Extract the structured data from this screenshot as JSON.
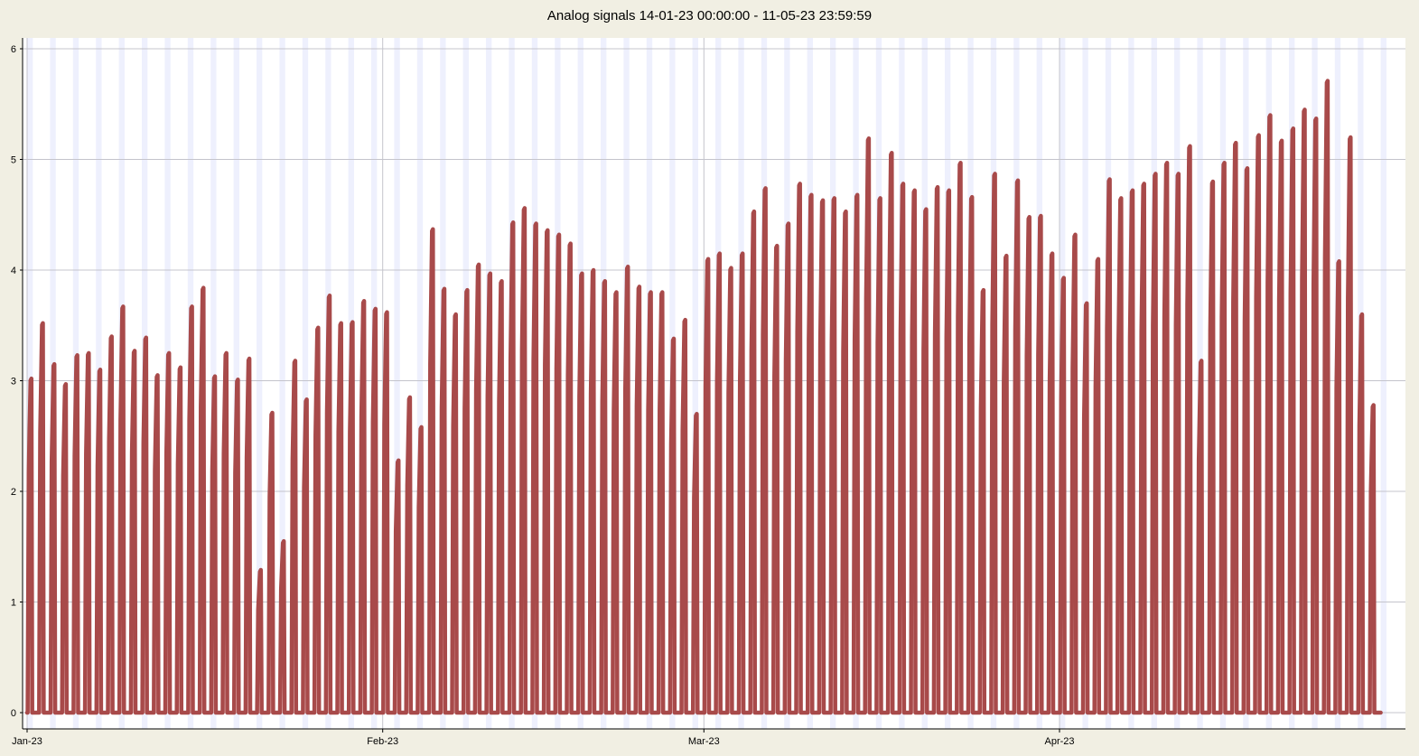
{
  "chart_data": {
    "type": "area",
    "title": "Analog signals 14-01-23 00:00:00 - 11-05-23 23:59:59",
    "xlabel": "",
    "ylabel": "",
    "ylim": [
      0,
      6
    ],
    "yticks": [
      0,
      1,
      2,
      3,
      4,
      5,
      6
    ],
    "xlim": [
      "2023-01-01",
      "2023-04-30"
    ],
    "xticks": [
      {
        "date": "2023-01-01",
        "label": "Jan-23"
      },
      {
        "date": "2023-02-01",
        "label": "Feb-23"
      },
      {
        "date": "2023-03-01",
        "label": "Mar-23"
      },
      {
        "date": "2023-04-01",
        "label": "Apr-23"
      }
    ],
    "grid": true,
    "legend": "none",
    "series": [
      {
        "color": "#a84a4a",
        "fill": "#f2cccc",
        "daily_peaks": [
          {
            "date": "2023-01-01",
            "value": 3.02
          },
          {
            "date": "2023-01-02",
            "value": 3.52
          },
          {
            "date": "2023-01-03",
            "value": 3.15
          },
          {
            "date": "2023-01-04",
            "value": 2.97
          },
          {
            "date": "2023-01-05",
            "value": 3.23
          },
          {
            "date": "2023-01-06",
            "value": 3.25
          },
          {
            "date": "2023-01-07",
            "value": 3.1
          },
          {
            "date": "2023-01-08",
            "value": 3.4
          },
          {
            "date": "2023-01-09",
            "value": 3.67
          },
          {
            "date": "2023-01-10",
            "value": 3.27
          },
          {
            "date": "2023-01-11",
            "value": 3.39
          },
          {
            "date": "2023-01-12",
            "value": 3.05
          },
          {
            "date": "2023-01-13",
            "value": 3.25
          },
          {
            "date": "2023-01-14",
            "value": 3.12
          },
          {
            "date": "2023-01-15",
            "value": 3.67
          },
          {
            "date": "2023-01-16",
            "value": 3.84
          },
          {
            "date": "2023-01-17",
            "value": 3.04
          },
          {
            "date": "2023-01-18",
            "value": 3.25
          },
          {
            "date": "2023-01-19",
            "value": 3.01
          },
          {
            "date": "2023-01-20",
            "value": 3.2
          },
          {
            "date": "2023-01-21",
            "value": 1.29
          },
          {
            "date": "2023-01-22",
            "value": 2.71
          },
          {
            "date": "2023-01-23",
            "value": 1.55
          },
          {
            "date": "2023-01-24",
            "value": 3.18
          },
          {
            "date": "2023-01-25",
            "value": 2.83
          },
          {
            "date": "2023-01-26",
            "value": 3.48
          },
          {
            "date": "2023-01-27",
            "value": 3.77
          },
          {
            "date": "2023-01-28",
            "value": 3.52
          },
          {
            "date": "2023-01-29",
            "value": 3.53
          },
          {
            "date": "2023-01-30",
            "value": 3.72
          },
          {
            "date": "2023-01-31",
            "value": 3.65
          },
          {
            "date": "2023-02-01",
            "value": 3.62
          },
          {
            "date": "2023-02-02",
            "value": 2.28
          },
          {
            "date": "2023-02-03",
            "value": 2.85
          },
          {
            "date": "2023-02-04",
            "value": 2.58
          },
          {
            "date": "2023-02-05",
            "value": 4.37
          },
          {
            "date": "2023-02-06",
            "value": 3.83
          },
          {
            "date": "2023-02-07",
            "value": 3.6
          },
          {
            "date": "2023-02-08",
            "value": 3.82
          },
          {
            "date": "2023-02-09",
            "value": 4.05
          },
          {
            "date": "2023-02-10",
            "value": 3.97
          },
          {
            "date": "2023-02-11",
            "value": 3.9
          },
          {
            "date": "2023-02-12",
            "value": 4.43
          },
          {
            "date": "2023-02-13",
            "value": 4.56
          },
          {
            "date": "2023-02-14",
            "value": 4.42
          },
          {
            "date": "2023-02-15",
            "value": 4.36
          },
          {
            "date": "2023-02-16",
            "value": 4.32
          },
          {
            "date": "2023-02-17",
            "value": 4.24
          },
          {
            "date": "2023-02-18",
            "value": 3.97
          },
          {
            "date": "2023-02-19",
            "value": 4.0
          },
          {
            "date": "2023-02-20",
            "value": 3.9
          },
          {
            "date": "2023-02-21",
            "value": 3.8
          },
          {
            "date": "2023-02-22",
            "value": 4.03
          },
          {
            "date": "2023-02-23",
            "value": 3.85
          },
          {
            "date": "2023-02-24",
            "value": 3.8
          },
          {
            "date": "2023-02-25",
            "value": 3.8
          },
          {
            "date": "2023-02-26",
            "value": 3.38
          },
          {
            "date": "2023-02-27",
            "value": 3.55
          },
          {
            "date": "2023-02-28",
            "value": 2.7
          },
          {
            "date": "2023-03-01",
            "value": 4.1
          },
          {
            "date": "2023-03-02",
            "value": 4.15
          },
          {
            "date": "2023-03-03",
            "value": 4.02
          },
          {
            "date": "2023-03-04",
            "value": 4.15
          },
          {
            "date": "2023-03-05",
            "value": 4.53
          },
          {
            "date": "2023-03-06",
            "value": 4.74
          },
          {
            "date": "2023-03-07",
            "value": 4.22
          },
          {
            "date": "2023-03-08",
            "value": 4.42
          },
          {
            "date": "2023-03-09",
            "value": 4.78
          },
          {
            "date": "2023-03-10",
            "value": 4.68
          },
          {
            "date": "2023-03-11",
            "value": 4.63
          },
          {
            "date": "2023-03-12",
            "value": 4.65
          },
          {
            "date": "2023-03-13",
            "value": 4.53
          },
          {
            "date": "2023-03-14",
            "value": 4.68
          },
          {
            "date": "2023-03-15",
            "value": 5.19
          },
          {
            "date": "2023-03-16",
            "value": 4.65
          },
          {
            "date": "2023-03-17",
            "value": 5.06
          },
          {
            "date": "2023-03-18",
            "value": 4.78
          },
          {
            "date": "2023-03-19",
            "value": 4.72
          },
          {
            "date": "2023-03-20",
            "value": 4.55
          },
          {
            "date": "2023-03-21",
            "value": 4.75
          },
          {
            "date": "2023-03-22",
            "value": 4.72
          },
          {
            "date": "2023-03-23",
            "value": 4.97
          },
          {
            "date": "2023-03-24",
            "value": 4.66
          },
          {
            "date": "2023-03-25",
            "value": 3.82
          },
          {
            "date": "2023-03-26",
            "value": 4.87
          },
          {
            "date": "2023-03-27",
            "value": 4.13
          },
          {
            "date": "2023-03-28",
            "value": 4.81
          },
          {
            "date": "2023-03-29",
            "value": 4.48
          },
          {
            "date": "2023-03-30",
            "value": 4.49
          },
          {
            "date": "2023-03-31",
            "value": 4.15
          },
          {
            "date": "2023-04-01",
            "value": 3.93
          },
          {
            "date": "2023-04-02",
            "value": 4.32
          },
          {
            "date": "2023-04-03",
            "value": 3.7
          },
          {
            "date": "2023-04-04",
            "value": 4.1
          },
          {
            "date": "2023-04-05",
            "value": 4.82
          },
          {
            "date": "2023-04-06",
            "value": 4.65
          },
          {
            "date": "2023-04-07",
            "value": 4.72
          },
          {
            "date": "2023-04-08",
            "value": 4.78
          },
          {
            "date": "2023-04-09",
            "value": 4.87
          },
          {
            "date": "2023-04-10",
            "value": 4.97
          },
          {
            "date": "2023-04-11",
            "value": 4.87
          },
          {
            "date": "2023-04-12",
            "value": 5.12
          },
          {
            "date": "2023-04-13",
            "value": 3.18
          },
          {
            "date": "2023-04-14",
            "value": 4.8
          },
          {
            "date": "2023-04-15",
            "value": 4.97
          },
          {
            "date": "2023-04-16",
            "value": 5.15
          },
          {
            "date": "2023-04-17",
            "value": 4.92
          },
          {
            "date": "2023-04-18",
            "value": 5.22
          },
          {
            "date": "2023-04-19",
            "value": 5.4
          },
          {
            "date": "2023-04-20",
            "value": 5.17
          },
          {
            "date": "2023-04-21",
            "value": 5.28
          },
          {
            "date": "2023-04-22",
            "value": 5.45
          },
          {
            "date": "2023-04-23",
            "value": 5.37
          },
          {
            "date": "2023-04-24",
            "value": 5.71
          },
          {
            "date": "2023-04-25",
            "value": 4.08
          },
          {
            "date": "2023-04-26",
            "value": 5.2
          },
          {
            "date": "2023-04-27",
            "value": 3.6
          },
          {
            "date": "2023-04-28",
            "value": 2.78
          }
        ]
      }
    ]
  }
}
